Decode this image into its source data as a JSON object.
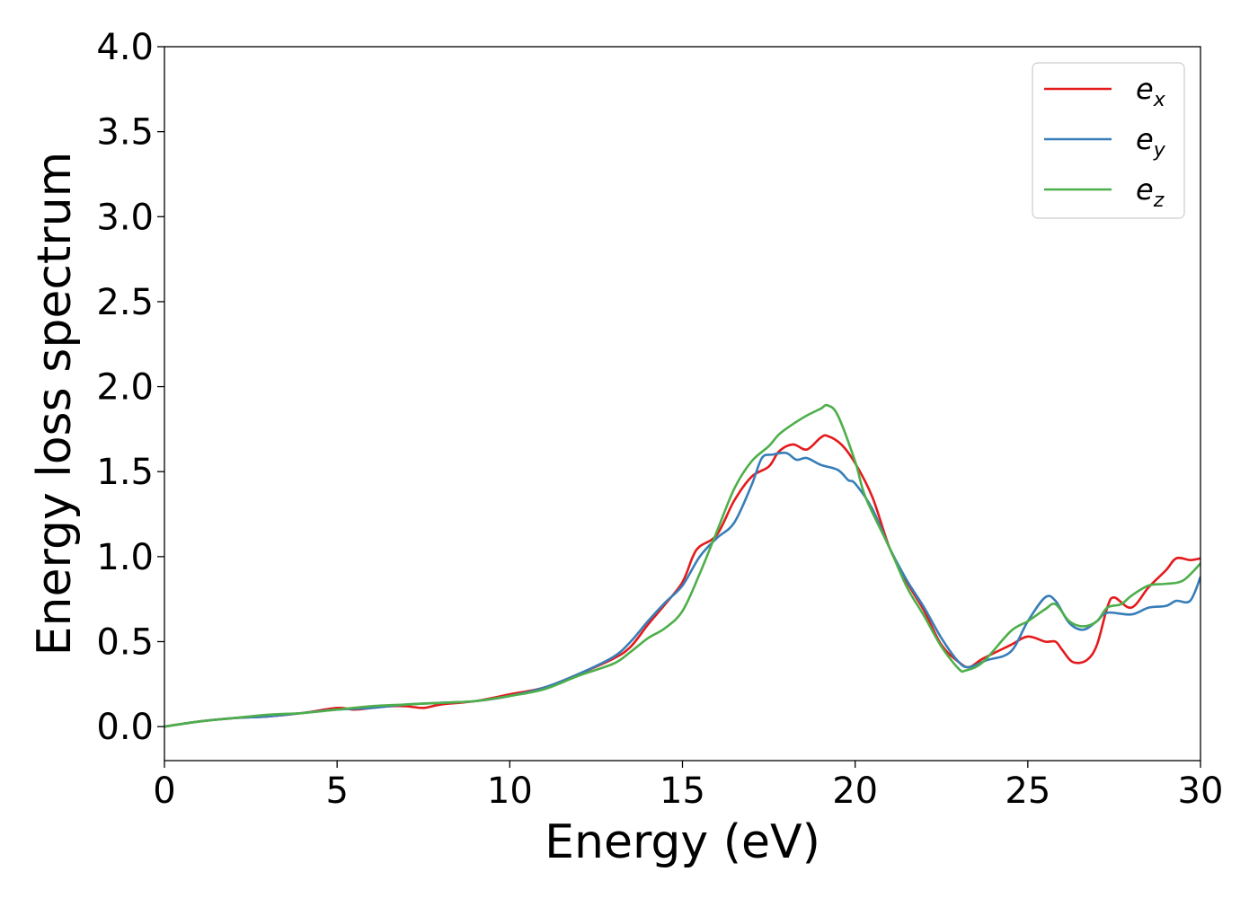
{
  "chart_data": {
    "type": "line",
    "title": "",
    "xlabel": "Energy (eV)",
    "ylabel": "Energy loss spectrum",
    "xlim": [
      0,
      30
    ],
    "ylim": [
      -0.2,
      4.0
    ],
    "xticks": [
      0,
      5,
      10,
      15,
      20,
      25,
      30
    ],
    "yticks": [
      0.0,
      0.5,
      1.0,
      1.5,
      2.0,
      2.5,
      3.0,
      3.5,
      4.0
    ],
    "xtick_labels": [
      "0",
      "5",
      "10",
      "15",
      "20",
      "25",
      "30"
    ],
    "ytick_labels": [
      "0.0",
      "0.5",
      "1.0",
      "1.5",
      "2.0",
      "2.5",
      "3.0",
      "3.5",
      "4.0"
    ],
    "grid": false,
    "legend_position": "top-right",
    "series": [
      {
        "name": "e_x",
        "legend_base": "e",
        "legend_sub": "x",
        "color": "#e41a1c",
        "points": [
          [
            0,
            0.0
          ],
          [
            1,
            0.03
          ],
          [
            2,
            0.05
          ],
          [
            3,
            0.06
          ],
          [
            4,
            0.08
          ],
          [
            5,
            0.11
          ],
          [
            5.5,
            0.1
          ],
          [
            6,
            0.11
          ],
          [
            6.5,
            0.12
          ],
          [
            7,
            0.12
          ],
          [
            7.5,
            0.11
          ],
          [
            8,
            0.13
          ],
          [
            9,
            0.15
          ],
          [
            10,
            0.19
          ],
          [
            11,
            0.23
          ],
          [
            12,
            0.31
          ],
          [
            13,
            0.4
          ],
          [
            13.5,
            0.47
          ],
          [
            14,
            0.6
          ],
          [
            14.5,
            0.72
          ],
          [
            15,
            0.85
          ],
          [
            15.3,
            1.0
          ],
          [
            15.5,
            1.06
          ],
          [
            16,
            1.13
          ],
          [
            16.5,
            1.33
          ],
          [
            17,
            1.47
          ],
          [
            17.5,
            1.53
          ],
          [
            17.8,
            1.62
          ],
          [
            18.2,
            1.66
          ],
          [
            18.6,
            1.63
          ],
          [
            19,
            1.7
          ],
          [
            19.2,
            1.71
          ],
          [
            19.6,
            1.66
          ],
          [
            20,
            1.55
          ],
          [
            20.5,
            1.35
          ],
          [
            21,
            1.05
          ],
          [
            21.5,
            0.85
          ],
          [
            22,
            0.68
          ],
          [
            22.5,
            0.48
          ],
          [
            23,
            0.38
          ],
          [
            23.3,
            0.35
          ],
          [
            23.7,
            0.4
          ],
          [
            24.5,
            0.48
          ],
          [
            25,
            0.53
          ],
          [
            25.5,
            0.5
          ],
          [
            25.8,
            0.5
          ],
          [
            26,
            0.45
          ],
          [
            26.3,
            0.38
          ],
          [
            26.7,
            0.39
          ],
          [
            27,
            0.48
          ],
          [
            27.3,
            0.7
          ],
          [
            27.5,
            0.76
          ],
          [
            28,
            0.7
          ],
          [
            28.5,
            0.82
          ],
          [
            29,
            0.92
          ],
          [
            29.3,
            0.99
          ],
          [
            29.7,
            0.98
          ],
          [
            30,
            0.99
          ]
        ]
      },
      {
        "name": "e_y",
        "legend_base": "e",
        "legend_sub": "y",
        "color": "#377eb8",
        "points": [
          [
            0,
            0.0
          ],
          [
            1,
            0.03
          ],
          [
            2,
            0.05
          ],
          [
            3,
            0.06
          ],
          [
            4,
            0.08
          ],
          [
            5,
            0.1
          ],
          [
            6,
            0.11
          ],
          [
            7,
            0.13
          ],
          [
            8,
            0.14
          ],
          [
            9,
            0.15
          ],
          [
            10,
            0.18
          ],
          [
            11,
            0.23
          ],
          [
            12,
            0.31
          ],
          [
            13,
            0.41
          ],
          [
            13.5,
            0.5
          ],
          [
            14,
            0.62
          ],
          [
            14.5,
            0.73
          ],
          [
            15,
            0.83
          ],
          [
            15.5,
            1.0
          ],
          [
            16,
            1.11
          ],
          [
            16.5,
            1.2
          ],
          [
            17,
            1.42
          ],
          [
            17.3,
            1.58
          ],
          [
            17.6,
            1.6
          ],
          [
            18,
            1.61
          ],
          [
            18.3,
            1.57
          ],
          [
            18.6,
            1.58
          ],
          [
            19,
            1.54
          ],
          [
            19.5,
            1.51
          ],
          [
            19.8,
            1.45
          ],
          [
            20,
            1.43
          ],
          [
            20.5,
            1.28
          ],
          [
            21,
            1.05
          ],
          [
            21.5,
            0.86
          ],
          [
            22,
            0.7
          ],
          [
            22.5,
            0.52
          ],
          [
            23,
            0.38
          ],
          [
            23.3,
            0.35
          ],
          [
            23.8,
            0.39
          ],
          [
            24.5,
            0.44
          ],
          [
            25,
            0.62
          ],
          [
            25.5,
            0.76
          ],
          [
            25.8,
            0.74
          ],
          [
            26.2,
            0.61
          ],
          [
            26.6,
            0.57
          ],
          [
            27,
            0.62
          ],
          [
            27.3,
            0.67
          ],
          [
            28,
            0.66
          ],
          [
            28.5,
            0.7
          ],
          [
            29,
            0.71
          ],
          [
            29.3,
            0.74
          ],
          [
            29.7,
            0.74
          ],
          [
            30,
            0.88
          ]
        ]
      },
      {
        "name": "e_z",
        "legend_base": "e",
        "legend_sub": "z",
        "color": "#4daf4a",
        "points": [
          [
            0,
            0.0
          ],
          [
            1,
            0.03
          ],
          [
            2,
            0.05
          ],
          [
            3,
            0.07
          ],
          [
            4,
            0.08
          ],
          [
            5,
            0.1
          ],
          [
            6,
            0.12
          ],
          [
            7,
            0.13
          ],
          [
            8,
            0.14
          ],
          [
            9,
            0.15
          ],
          [
            10,
            0.18
          ],
          [
            11,
            0.22
          ],
          [
            12,
            0.3
          ],
          [
            13,
            0.37
          ],
          [
            13.5,
            0.44
          ],
          [
            14,
            0.52
          ],
          [
            14.5,
            0.58
          ],
          [
            15,
            0.68
          ],
          [
            15.5,
            0.9
          ],
          [
            16,
            1.15
          ],
          [
            16.5,
            1.4
          ],
          [
            17,
            1.56
          ],
          [
            17.5,
            1.65
          ],
          [
            17.8,
            1.72
          ],
          [
            18.2,
            1.78
          ],
          [
            18.6,
            1.83
          ],
          [
            19,
            1.87
          ],
          [
            19.2,
            1.89
          ],
          [
            19.5,
            1.83
          ],
          [
            20,
            1.56
          ],
          [
            20.3,
            1.35
          ],
          [
            21,
            1.05
          ],
          [
            21.5,
            0.82
          ],
          [
            22,
            0.65
          ],
          [
            22.5,
            0.47
          ],
          [
            23,
            0.34
          ],
          [
            23.2,
            0.33
          ],
          [
            23.7,
            0.38
          ],
          [
            24.5,
            0.56
          ],
          [
            25,
            0.62
          ],
          [
            25.5,
            0.69
          ],
          [
            25.8,
            0.72
          ],
          [
            26.2,
            0.62
          ],
          [
            26.6,
            0.59
          ],
          [
            27,
            0.62
          ],
          [
            27.3,
            0.7
          ],
          [
            27.7,
            0.72
          ],
          [
            28,
            0.77
          ],
          [
            28.5,
            0.83
          ],
          [
            29,
            0.84
          ],
          [
            29.5,
            0.86
          ],
          [
            30,
            0.96
          ]
        ]
      }
    ]
  }
}
